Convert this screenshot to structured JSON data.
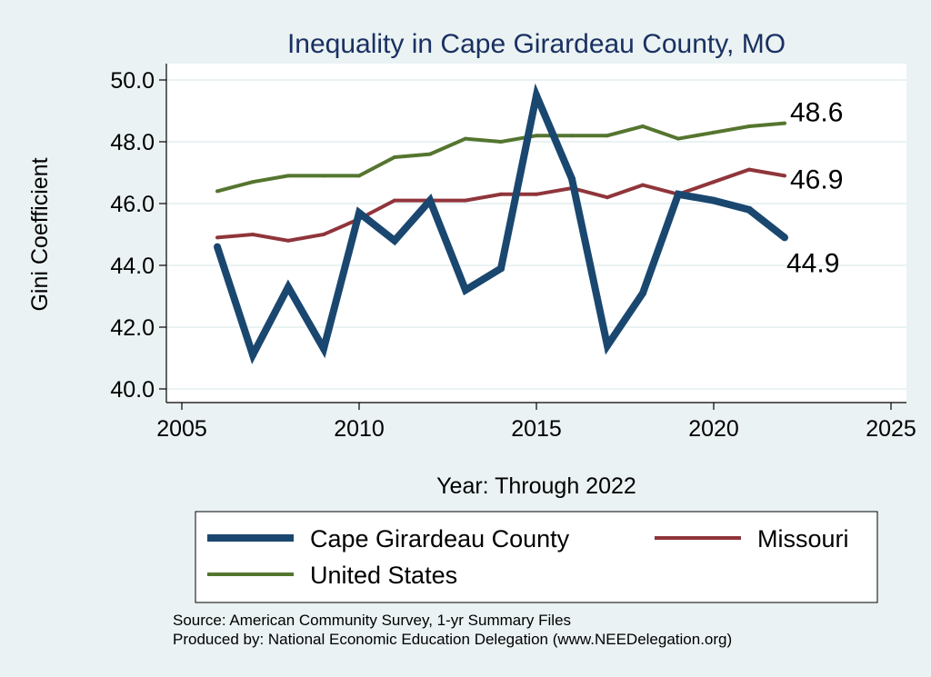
{
  "chart_data": {
    "type": "line",
    "title": "Inequality in Cape Girardeau County, MO",
    "xlabel": "Year: Through 2022",
    "ylabel": "Gini Coefficient",
    "xlim": [
      2005,
      2025
    ],
    "ylim": [
      40,
      50
    ],
    "xticks": [
      "2005",
      "2010",
      "2015",
      "2020",
      "2025"
    ],
    "yticks": [
      "40.0",
      "42.0",
      "44.0",
      "46.0",
      "48.0",
      "50.0"
    ],
    "grid": true,
    "legend_position": "bottom",
    "series": [
      {
        "name": "Cape Girardeau County",
        "color": "#1a476f",
        "x": [
          2006,
          2007,
          2008,
          2009,
          2010,
          2011,
          2012,
          2013,
          2014,
          2015,
          2016,
          2017,
          2018,
          2019,
          2020,
          2021,
          2022
        ],
        "values": [
          44.6,
          41.1,
          43.3,
          41.3,
          45.7,
          44.8,
          46.1,
          43.2,
          43.9,
          49.5,
          46.8,
          41.4,
          43.1,
          46.3,
          46.1,
          45.8,
          44.9
        ],
        "end_label": "44.9"
      },
      {
        "name": "Missouri",
        "color": "#90353b",
        "x": [
          2006,
          2007,
          2008,
          2009,
          2010,
          2011,
          2012,
          2013,
          2014,
          2015,
          2016,
          2017,
          2018,
          2019,
          2020,
          2021,
          2022
        ],
        "values": [
          44.9,
          45.0,
          44.8,
          45.0,
          45.5,
          46.1,
          46.1,
          46.1,
          46.3,
          46.3,
          46.5,
          46.2,
          46.6,
          46.3,
          46.7,
          47.1,
          46.9
        ],
        "end_label": "46.9"
      },
      {
        "name": "United States",
        "color": "#55752f",
        "x": [
          2006,
          2007,
          2008,
          2009,
          2010,
          2011,
          2012,
          2013,
          2014,
          2015,
          2016,
          2017,
          2018,
          2019,
          2020,
          2021,
          2022
        ],
        "values": [
          46.4,
          46.7,
          46.9,
          46.9,
          46.9,
          47.5,
          47.6,
          48.1,
          48.0,
          48.2,
          48.2,
          48.2,
          48.5,
          48.1,
          48.3,
          48.5,
          48.6
        ],
        "end_label": "48.6"
      }
    ],
    "source_lines": [
      "Source: American Community Survey, 1-yr Summary Files",
      "Produced by: National Economic Education Delegation (www.NEEDelegation.org)"
    ]
  }
}
